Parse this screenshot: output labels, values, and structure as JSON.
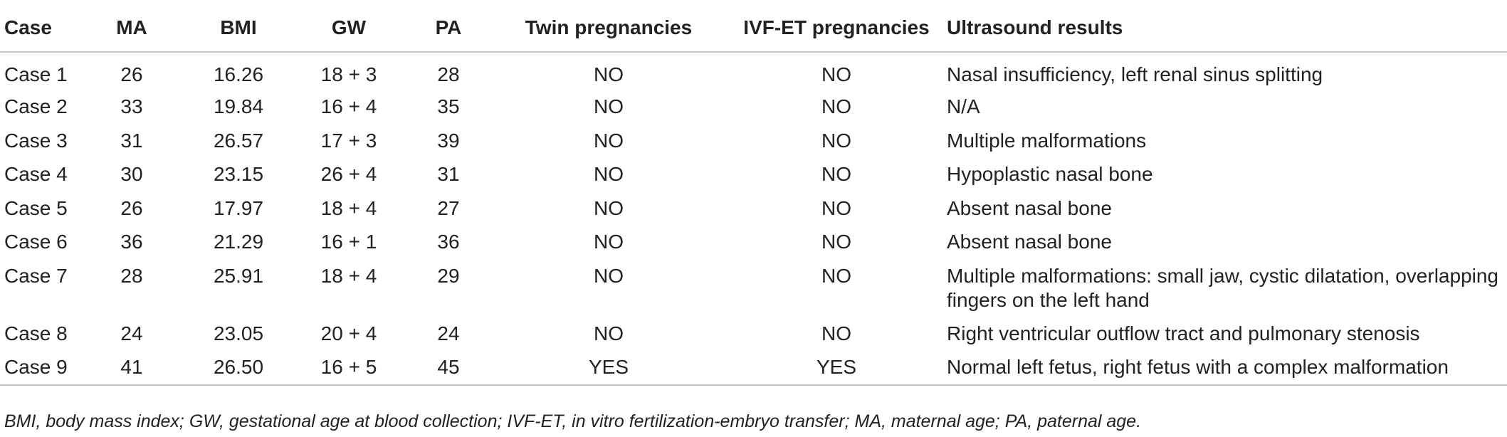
{
  "table": {
    "headers": [
      "Case",
      "MA",
      "BMI",
      "GW",
      "PA",
      "Twin pregnancies",
      "IVF-ET pregnancies",
      "Ultrasound results"
    ],
    "rows": [
      [
        "Case 1",
        "26",
        "16.26",
        "18 + 3",
        "28",
        "NO",
        "NO",
        "Nasal insufficiency, left renal sinus splitting"
      ],
      [
        "Case 2",
        "33",
        "19.84",
        "16 + 4",
        "35",
        "NO",
        "NO",
        "N/A"
      ],
      [
        "Case 3",
        "31",
        "26.57",
        "17 + 3",
        "39",
        "NO",
        "NO",
        "Multiple malformations"
      ],
      [
        "Case 4",
        "30",
        "23.15",
        "26 + 4",
        "31",
        "NO",
        "NO",
        "Hypoplastic nasal bone"
      ],
      [
        "Case 5",
        "26",
        "17.97",
        "18 + 4",
        "27",
        "NO",
        "NO",
        "Absent nasal bone"
      ],
      [
        "Case 6",
        "36",
        "21.29",
        "16 + 1",
        "36",
        "NO",
        "NO",
        "Absent nasal bone"
      ],
      [
        "Case 7",
        "28",
        "25.91",
        "18 + 4",
        "29",
        "NO",
        "NO",
        "Multiple malformations: small jaw, cystic dilatation, overlapping fingers on the left hand"
      ],
      [
        "Case 8",
        "24",
        "23.05",
        "20 + 4",
        "24",
        "NO",
        "NO",
        "Right ventricular outflow tract and pulmonary stenosis"
      ],
      [
        "Case 9",
        "41",
        "26.50",
        "16 + 5",
        "45",
        "YES",
        "YES",
        "Normal left fetus, right fetus with a complex malformation"
      ]
    ]
  },
  "footnote": "BMI, body mass index; GW, gestational age at blood collection; IVF-ET, in vitro fertilization-embryo transfer; MA, maternal age; PA, paternal age."
}
